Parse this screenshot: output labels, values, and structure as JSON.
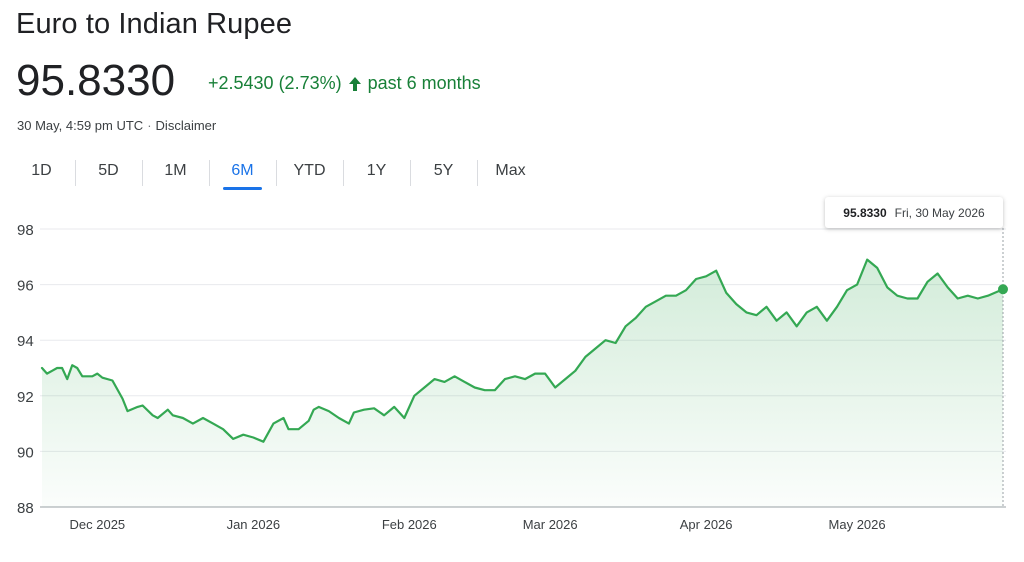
{
  "header": {
    "title": "Euro to Indian Rupee",
    "price": "95.8330",
    "change": "+2.5430 (2.73%)",
    "period": "past 6 months",
    "timestamp": "30 May, 4:59 pm UTC",
    "separator": "·",
    "disclaimer": "Disclaimer"
  },
  "colors": {
    "up": "#188038",
    "line": "#34a853",
    "accent": "#1a73e8",
    "grid": "#e8eaed"
  },
  "tabs": [
    {
      "label": "1D",
      "active": false
    },
    {
      "label": "5D",
      "active": false
    },
    {
      "label": "1M",
      "active": false
    },
    {
      "label": "6M",
      "active": true
    },
    {
      "label": "YTD",
      "active": false
    },
    {
      "label": "1Y",
      "active": false
    },
    {
      "label": "5Y",
      "active": false
    },
    {
      "label": "Max",
      "active": false
    }
  ],
  "tooltip": {
    "value": "95.8330",
    "date": "Fri, 30 May 2026"
  },
  "chart_data": {
    "type": "area",
    "ylim": [
      88,
      98
    ],
    "yticks": [
      88,
      90,
      92,
      94,
      96,
      98
    ],
    "grid": true,
    "x_range": [
      "2025-11-20",
      "2026-05-30"
    ],
    "xticks": [
      {
        "label": "Dec 2025",
        "date": "2025-12-01"
      },
      {
        "label": "Jan 2026",
        "date": "2026-01-01"
      },
      {
        "label": "Feb 2026",
        "date": "2026-02-01"
      },
      {
        "label": "Mar 2026",
        "date": "2026-03-01"
      },
      {
        "label": "Apr 2026",
        "date": "2026-04-01"
      },
      {
        "label": "May 2026",
        "date": "2026-05-01"
      }
    ],
    "series": [
      {
        "x": [
          "2025-11-20",
          "2025-11-21",
          "2025-11-22",
          "2025-11-23",
          "2025-11-24",
          "2025-11-25",
          "2025-11-26",
          "2025-11-27",
          "2025-11-28",
          "2025-11-29",
          "2025-11-30",
          "2025-12-01",
          "2025-12-02",
          "2025-12-04",
          "2025-12-06",
          "2025-12-07",
          "2025-12-09",
          "2025-12-10",
          "2025-12-12",
          "2025-12-13",
          "2025-12-15",
          "2025-12-16",
          "2025-12-18",
          "2025-12-20",
          "2025-12-22",
          "2025-12-24",
          "2025-12-26",
          "2025-12-28",
          "2025-12-30",
          "2026-01-01",
          "2026-01-03",
          "2026-01-05",
          "2026-01-07",
          "2026-01-08",
          "2026-01-10",
          "2026-01-12",
          "2026-01-13",
          "2026-01-14",
          "2026-01-16",
          "2026-01-18",
          "2026-01-20",
          "2026-01-21",
          "2026-01-23",
          "2026-01-25",
          "2026-01-27",
          "2026-01-29",
          "2026-01-31",
          "2026-02-02",
          "2026-02-04",
          "2026-02-06",
          "2026-02-08",
          "2026-02-10",
          "2026-02-12",
          "2026-02-14",
          "2026-02-16",
          "2026-02-18",
          "2026-02-20",
          "2026-02-22",
          "2026-02-24",
          "2026-02-26",
          "2026-02-28",
          "2026-03-02",
          "2026-03-04",
          "2026-03-06",
          "2026-03-08",
          "2026-03-10",
          "2026-03-12",
          "2026-03-14",
          "2026-03-16",
          "2026-03-18",
          "2026-03-20",
          "2026-03-22",
          "2026-03-24",
          "2026-03-26",
          "2026-03-28",
          "2026-03-30",
          "2026-04-01",
          "2026-04-03",
          "2026-04-05",
          "2026-04-07",
          "2026-04-09",
          "2026-04-11",
          "2026-04-13",
          "2026-04-15",
          "2026-04-17",
          "2026-04-19",
          "2026-04-21",
          "2026-04-23",
          "2026-04-25",
          "2026-04-27",
          "2026-04-29",
          "2026-05-01",
          "2026-05-03",
          "2026-05-05",
          "2026-05-07",
          "2026-05-09",
          "2026-05-11",
          "2026-05-13",
          "2026-05-15",
          "2026-05-17",
          "2026-05-19",
          "2026-05-21",
          "2026-05-23",
          "2026-05-25",
          "2026-05-27",
          "2026-05-30"
        ],
        "y": [
          93.0,
          92.8,
          92.9,
          93.0,
          93.0,
          92.6,
          93.1,
          93.0,
          92.7,
          92.7,
          92.7,
          92.8,
          92.65,
          92.55,
          91.9,
          91.45,
          91.6,
          91.65,
          91.3,
          91.2,
          91.5,
          91.3,
          91.2,
          91.0,
          91.2,
          91.0,
          90.8,
          90.45,
          90.6,
          90.5,
          90.35,
          91.0,
          91.2,
          90.8,
          90.8,
          91.1,
          91.5,
          91.6,
          91.45,
          91.2,
          91.0,
          91.4,
          91.5,
          91.55,
          91.3,
          91.6,
          91.2,
          92.0,
          92.3,
          92.6,
          92.5,
          92.7,
          92.5,
          92.3,
          92.2,
          92.2,
          92.6,
          92.7,
          92.6,
          92.8,
          92.8,
          92.3,
          92.6,
          92.9,
          93.4,
          93.7,
          94.0,
          93.9,
          94.5,
          94.8,
          95.2,
          95.4,
          95.6,
          95.6,
          95.8,
          96.2,
          96.3,
          96.5,
          95.7,
          95.3,
          95.0,
          94.9,
          95.2,
          94.7,
          95.0,
          94.5,
          95.0,
          95.2,
          94.7,
          95.2,
          95.8,
          96.0,
          96.9,
          96.6,
          95.9,
          95.6,
          95.5,
          95.5,
          96.1,
          96.4,
          95.9,
          95.5,
          95.6,
          95.5,
          95.6,
          95.833
        ]
      }
    ],
    "current_value": 95.833
  }
}
